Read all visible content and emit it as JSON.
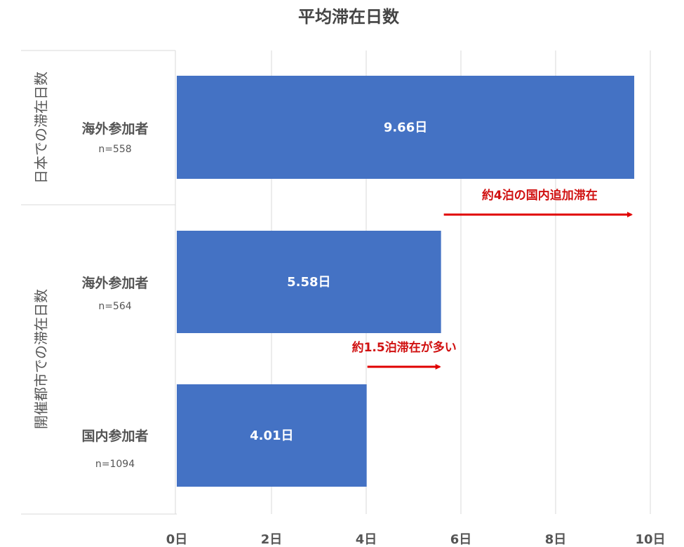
{
  "chart_data": {
    "type": "bar",
    "orientation": "horizontal",
    "title": "平均滞在日数",
    "groups": [
      {
        "label": "日本での滞在日数",
        "categories": [
          {
            "label": "海外参加者",
            "n": "n=558",
            "value": 9.66,
            "data_label": "9.66日"
          }
        ]
      },
      {
        "label": "開催都市での滞在日数",
        "categories": [
          {
            "label": "海外参加者",
            "n": "n=564",
            "value": 5.58,
            "data_label": "5.58日"
          },
          {
            "label": "国内参加者",
            "n": "n=1094",
            "value": 4.01,
            "data_label": "4.01日"
          }
        ]
      }
    ],
    "xlim": [
      0,
      10
    ],
    "xticks": [
      0,
      2,
      4,
      6,
      8,
      10
    ],
    "xtick_labels": [
      "0日",
      "2日",
      "4日",
      "6日",
      "8日",
      "10日"
    ],
    "grid": true,
    "legend": "none",
    "bar_color": "#4472c4",
    "annotations": [
      {
        "text": "約4泊の国内追加滞在",
        "from": 5.58,
        "to": 9.66,
        "color": "#e00000"
      },
      {
        "text": "約1.5泊滞在が多い",
        "from": 4.01,
        "to": 5.58,
        "color": "#e00000"
      }
    ]
  }
}
